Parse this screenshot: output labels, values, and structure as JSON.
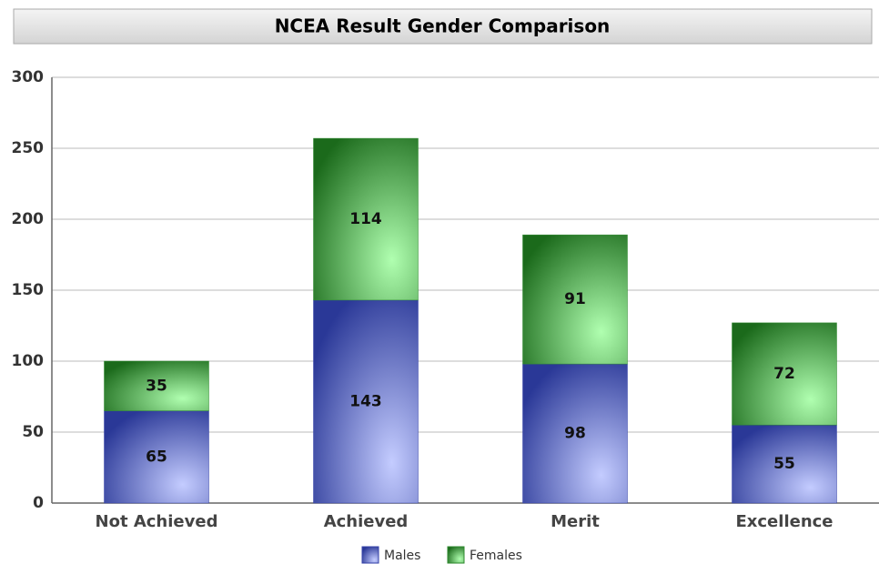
{
  "chart_data": {
    "type": "stacked_bar",
    "title": "NCEA Result Gender Comparison",
    "categories": [
      "Not Achieved",
      "Achieved",
      "Merit",
      "Excellence"
    ],
    "series": [
      {
        "name": "Males",
        "color": "#3442a8",
        "values": [
          65,
          143,
          98,
          55
        ]
      },
      {
        "name": "Females",
        "color": "#2e8a2e",
        "values": [
          35,
          114,
          91,
          72
        ]
      }
    ],
    "ylim": [
      0,
      300
    ],
    "yticks": [
      0,
      50,
      100,
      150,
      200,
      250,
      300
    ],
    "grid": true,
    "legend": "bottom"
  }
}
